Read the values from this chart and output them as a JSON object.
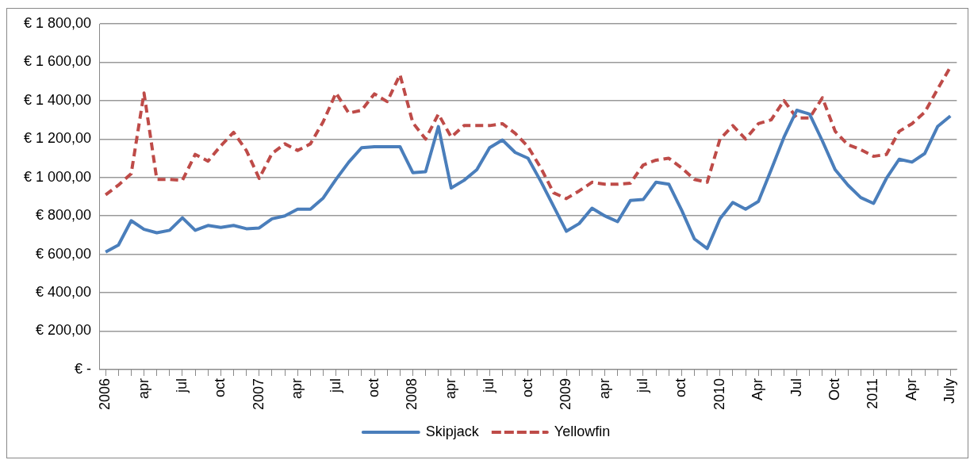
{
  "chart_data": {
    "type": "line",
    "categories": [
      "2006",
      null,
      null,
      "apr",
      null,
      null,
      "jul",
      null,
      null,
      "oct",
      null,
      null,
      "2007",
      null,
      null,
      "apr",
      null,
      null,
      "jul",
      null,
      null,
      "oct",
      null,
      null,
      "2008",
      null,
      null,
      "apr",
      null,
      null,
      "jul",
      null,
      null,
      "oct",
      null,
      null,
      "2009",
      null,
      null,
      "apr",
      null,
      null,
      "jul",
      null,
      null,
      "oct",
      null,
      null,
      "2010",
      null,
      null,
      "Apr",
      null,
      null,
      "Jul",
      null,
      null,
      "Oct",
      null,
      null,
      "2011",
      null,
      null,
      "Apr",
      null,
      null,
      "July"
    ],
    "series": [
      {
        "name": "Skipjack",
        "color": "#4a7ebb",
        "line_style": "solid",
        "values": [
          612,
          648,
          775,
          730,
          712,
          725,
          790,
          725,
          750,
          740,
          750,
          733,
          737,
          785,
          800,
          835,
          835,
          893,
          990,
          1080,
          1155,
          1160,
          1160,
          1160,
          1025,
          1030,
          1265,
          945,
          985,
          1040,
          1155,
          1195,
          1130,
          1100,
          980,
          850,
          720,
          760,
          840,
          800,
          770,
          880,
          885,
          975,
          965,
          830,
          680,
          630,
          785,
          870,
          835,
          875,
          1040,
          1210,
          1350,
          1330,
          1190,
          1040,
          960,
          895,
          865,
          995,
          1095,
          1080,
          1125,
          1265,
          1320
        ]
      },
      {
        "name": "Yellowfin",
        "color": "#be4b48",
        "line_style": "dashed",
        "values": [
          910,
          960,
          1020,
          1440,
          990,
          990,
          985,
          1120,
          1085,
          1165,
          1235,
          1140,
          995,
          1125,
          1175,
          1140,
          1175,
          1290,
          1440,
          1335,
          1350,
          1435,
          1395,
          1535,
          1285,
          1200,
          1330,
          1210,
          1270,
          1270,
          1270,
          1280,
          1230,
          1160,
          1050,
          920,
          890,
          930,
          975,
          965,
          965,
          970,
          1065,
          1090,
          1100,
          1050,
          990,
          975,
          1200,
          1270,
          1200,
          1280,
          1300,
          1400,
          1310,
          1310,
          1415,
          1240,
          1170,
          1145,
          1110,
          1120,
          1240,
          1280,
          1340,
          1460,
          1575
        ]
      }
    ],
    "ylim": [
      0,
      1800
    ],
    "yticks": [
      {
        "value": 0,
        "label": "€ -"
      },
      {
        "value": 200,
        "label": "€ 200,00"
      },
      {
        "value": 400,
        "label": "€ 400,00"
      },
      {
        "value": 600,
        "label": "€ 600,00"
      },
      {
        "value": 800,
        "label": "€ 800,00"
      },
      {
        "value": 1000,
        "label": "€ 1 000,00"
      },
      {
        "value": 1200,
        "label": "€ 1 200,00"
      },
      {
        "value": 1400,
        "label": "€ 1 400,00"
      },
      {
        "value": 1600,
        "label": "€ 1 600,00"
      },
      {
        "value": 1800,
        "label": "€ 1 800,00"
      }
    ],
    "grid": "y",
    "legend": "bottom",
    "marker": "none"
  }
}
